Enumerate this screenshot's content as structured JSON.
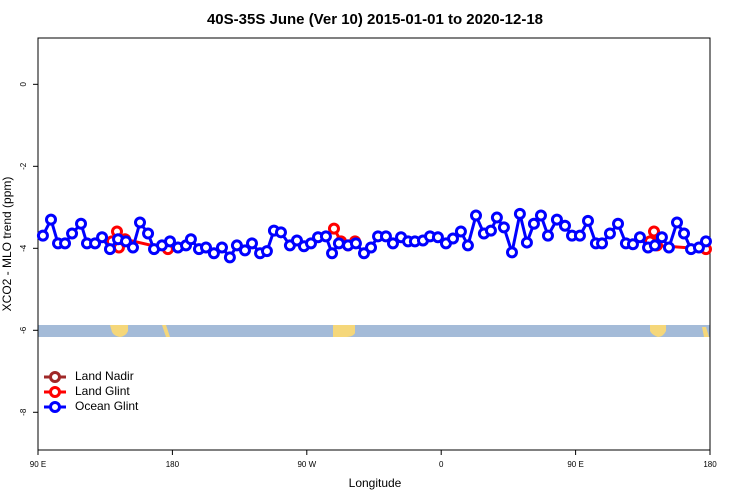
{
  "chart_data": {
    "type": "line",
    "title": "40S-35S June (Ver 10)   2015-01-01 to 2020-12-18",
    "xlabel": "Longitude",
    "ylabel": "XCO2 - MLO trend (ppm)",
    "xlim": [
      90,
      540
    ],
    "ylim": [
      -8.92,
      1.13
    ],
    "xticks": [
      {
        "value": 90,
        "label": "90 E"
      },
      {
        "value": 180,
        "label": "180"
      },
      {
        "value": 270,
        "label": "90 W"
      },
      {
        "value": 360,
        "label": "0"
      },
      {
        "value": 450,
        "label": "90 E"
      },
      {
        "value": 540,
        "label": "180"
      }
    ],
    "yticks": [
      0,
      -2,
      -4,
      -6,
      -8
    ],
    "legend": "bottomleft",
    "series": [
      {
        "name": "Land Nadir",
        "color": "#a02828",
        "x": [],
        "values": []
      },
      {
        "name": "Land Glint",
        "color": "#ff0000",
        "x": [
          139.5,
          142.9,
          144.2,
          148.3,
          177.0,
          null,
          288.2,
          292.9,
          297.6,
          302.3,
          null,
          499.8,
          502.5,
          504.5,
          537.3
        ],
        "values": [
          -3.83,
          -3.59,
          -3.98,
          -3.78,
          -4.02,
          null,
          -3.52,
          -3.83,
          -3.93,
          -3.83,
          null,
          -3.83,
          -3.59,
          -3.93,
          -4.02
        ]
      },
      {
        "name": "Ocean Glint",
        "color": "#0000ff",
        "x": [
          93.3,
          98.7,
          103.4,
          108.1,
          112.8,
          118.8,
          122.8,
          128.2,
          132.9,
          138.2,
          143.6,
          148.9,
          153.6,
          158.3,
          163.7,
          167.7,
          173.0,
          178.4,
          183.7,
          189.1,
          192.4,
          197.8,
          202.5,
          207.8,
          213.2,
          218.5,
          223.2,
          228.6,
          233.3,
          238.7,
          243.3,
          248.0,
          252.7,
          258.7,
          263.4,
          268.1,
          272.8,
          277.5,
          282.8,
          286.9,
          291.5,
          297.6,
          302.9,
          308.3,
          313.0,
          317.7,
          323.0,
          327.7,
          333.1,
          337.8,
          342.4,
          347.8,
          352.5,
          357.8,
          363.2,
          367.9,
          373.2,
          377.9,
          383.3,
          388.6,
          393.3,
          397.3,
          402.0,
          407.4,
          412.7,
          417.4,
          422.1,
          426.8,
          431.5,
          437.5,
          442.9,
          447.6,
          452.9,
          458.3,
          463.6,
          467.7,
          473.0,
          478.4,
          483.7,
          488.4,
          493.1,
          498.5,
          503.1,
          507.8,
          512.5,
          517.9,
          522.6,
          527.3,
          532.6,
          537.3
        ],
        "values": [
          -3.69,
          -3.3,
          -3.88,
          -3.88,
          -3.64,
          -3.4,
          -3.88,
          -3.88,
          -3.73,
          -4.02,
          -3.78,
          -3.83,
          -3.98,
          -3.37,
          -3.64,
          -4.02,
          -3.93,
          -3.83,
          -3.98,
          -3.93,
          -3.78,
          -4.02,
          -3.98,
          -4.12,
          -3.98,
          -4.22,
          -3.93,
          -4.05,
          -3.88,
          -4.12,
          -4.07,
          -3.57,
          -3.61,
          -3.93,
          -3.81,
          -3.95,
          -3.88,
          -3.73,
          -3.71,
          -4.12,
          -3.88,
          -3.93,
          -3.88,
          -4.12,
          -3.98,
          -3.71,
          -3.71,
          -3.88,
          -3.73,
          -3.83,
          -3.83,
          -3.81,
          -3.71,
          -3.73,
          -3.88,
          -3.76,
          -3.59,
          -3.93,
          -3.2,
          -3.64,
          -3.57,
          -3.25,
          -3.49,
          -4.1,
          -3.16,
          -3.86,
          -3.4,
          -3.2,
          -3.69,
          -3.3,
          -3.45,
          -3.69,
          -3.69,
          -3.33,
          -3.88,
          -3.88,
          -3.64,
          -3.4,
          -3.88,
          -3.9,
          -3.73,
          -3.98,
          -3.93,
          -3.73,
          -3.98,
          -3.37,
          -3.64,
          -4.02,
          -3.98,
          -3.83
        ]
      }
    ]
  }
}
